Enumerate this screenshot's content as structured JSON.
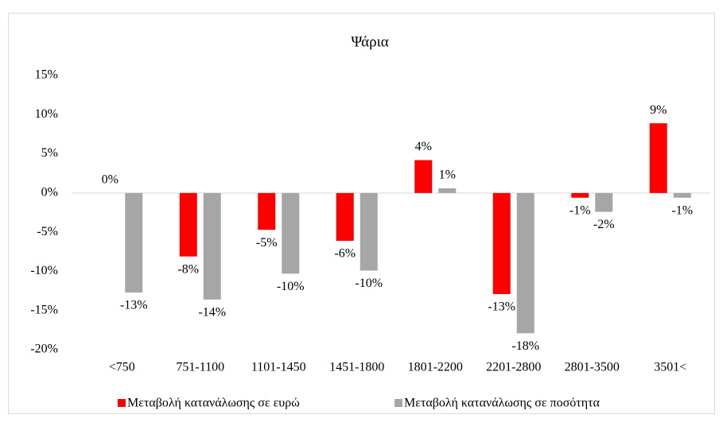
{
  "chart_data": {
    "type": "bar",
    "title": "Ψάρια",
    "categories": [
      "<750",
      "751-1100",
      "1101-1450",
      "1451-1800",
      "1801-2200",
      "2201-2800",
      "2801-3500",
      "3501<"
    ],
    "series": [
      {
        "name": "Μεταβολή κατανάλωσης σε ευρώ",
        "color": "#ff0000",
        "values": [
          0,
          -8.1,
          -4.7,
          -6.1,
          4.2,
          -12.9,
          -0.6,
          8.9
        ],
        "value_labels": [
          "0%",
          "-8%",
          "-5%",
          "-6%",
          "4%",
          "-13%",
          "-1%",
          "9%"
        ]
      },
      {
        "name": "Μεταβολή κατανάλωσης σε ποσότητα",
        "color": "#a6a6a6",
        "values": [
          -12.7,
          -13.6,
          -10.3,
          -9.9,
          0.6,
          -17.9,
          -2.4,
          -0.6
        ],
        "value_labels": [
          "-13%",
          "-14%",
          "-10%",
          "-10%",
          "1%",
          "-18%",
          "-2%",
          "-1%"
        ]
      }
    ],
    "ylim": [
      -20,
      15
    ],
    "yticks": [
      {
        "value": -20,
        "label": "-20%"
      },
      {
        "value": -15,
        "label": "-15%"
      },
      {
        "value": -10,
        "label": "-10%"
      },
      {
        "value": -5,
        "label": "-5%"
      },
      {
        "value": 0,
        "label": "0%"
      },
      {
        "value": 5,
        "label": "5%"
      },
      {
        "value": 10,
        "label": "10%"
      },
      {
        "value": 15,
        "label": "15%"
      }
    ],
    "grid": false,
    "legend": "bottom"
  }
}
